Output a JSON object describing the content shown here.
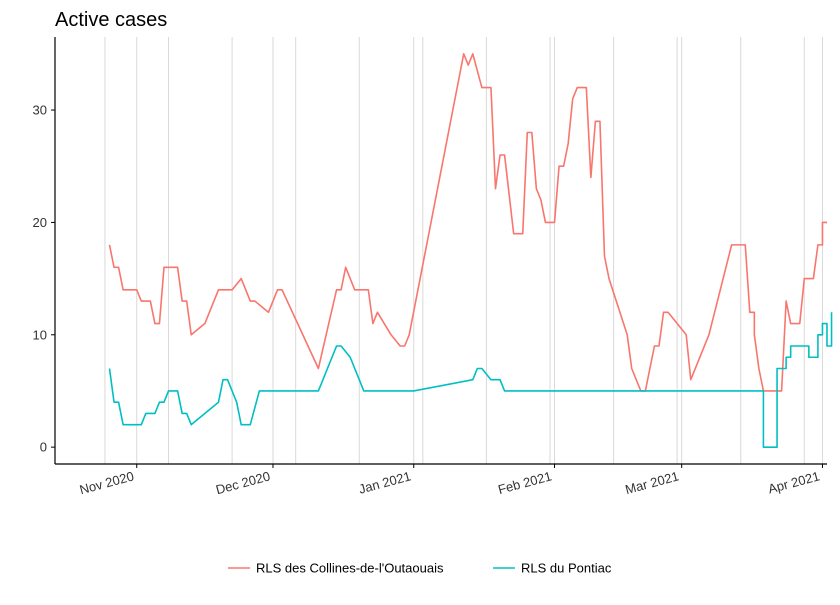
{
  "chart_data": {
    "type": "line",
    "title": "Active cases",
    "xlabel": "",
    "ylabel": "",
    "ylim": [
      -1.5,
      36.5
    ],
    "xlim": [
      "2020-10-14",
      "2021-04-02"
    ],
    "y_ticks": [
      0,
      10,
      20,
      30
    ],
    "x_ticks": [
      {
        "date": "2020-11-01",
        "label": "Nov 2020"
      },
      {
        "date": "2020-12-01",
        "label": "Dec 2020"
      },
      {
        "date": "2021-01-01",
        "label": "Jan 2021"
      },
      {
        "date": "2021-02-01",
        "label": "Feb 2021"
      },
      {
        "date": "2021-03-01",
        "label": "Mar 2021"
      },
      {
        "date": "2021-04-01",
        "label": "Apr 2021"
      }
    ],
    "minor_gridlines": [
      "2020-10-25",
      "2020-11-08",
      "2020-11-22",
      "2020-12-06",
      "2020-12-20",
      "2021-01-03",
      "2021-01-17",
      "2021-01-31",
      "2021-02-14",
      "2021-02-28",
      "2021-03-14",
      "2021-03-28"
    ],
    "grid": "vertical",
    "legend": "bottom",
    "series": [
      {
        "name": "RLS des Collines-de-l'Outaouais",
        "color": "#F8766D",
        "points": [
          [
            "2020-10-26",
            18
          ],
          [
            "2020-10-27",
            16
          ],
          [
            "2020-10-28",
            16
          ],
          [
            "2020-10-29",
            14
          ],
          [
            "2020-11-01",
            14
          ],
          [
            "2020-11-02",
            13
          ],
          [
            "2020-11-04",
            13
          ],
          [
            "2020-11-05",
            11
          ],
          [
            "2020-11-06",
            11
          ],
          [
            "2020-11-07",
            16
          ],
          [
            "2020-11-10",
            16
          ],
          [
            "2020-11-11",
            13
          ],
          [
            "2020-11-12",
            13
          ],
          [
            "2020-11-13",
            10
          ],
          [
            "2020-11-16",
            11
          ],
          [
            "2020-11-19",
            14
          ],
          [
            "2020-11-22",
            14
          ],
          [
            "2020-11-24",
            15
          ],
          [
            "2020-11-26",
            13
          ],
          [
            "2020-11-27",
            13
          ],
          [
            "2020-11-30",
            12
          ],
          [
            "2020-12-02",
            14
          ],
          [
            "2020-12-03",
            14
          ],
          [
            "2020-12-11",
            7
          ],
          [
            "2020-12-15",
            14
          ],
          [
            "2020-12-16",
            14
          ],
          [
            "2020-12-17",
            16
          ],
          [
            "2020-12-19",
            14
          ],
          [
            "2020-12-22",
            14
          ],
          [
            "2020-12-23",
            11
          ],
          [
            "2020-12-24",
            12
          ],
          [
            "2020-12-27",
            10
          ],
          [
            "2020-12-29",
            9
          ],
          [
            "2020-12-30",
            9
          ],
          [
            "2020-12-31",
            10
          ],
          [
            "2021-01-12",
            35
          ],
          [
            "2021-01-13",
            34
          ],
          [
            "2021-01-14",
            35
          ],
          [
            "2021-01-16",
            32
          ],
          [
            "2021-01-18",
            32
          ],
          [
            "2021-01-19",
            23
          ],
          [
            "2021-01-20",
            26
          ],
          [
            "2021-01-21",
            26
          ],
          [
            "2021-01-23",
            19
          ],
          [
            "2021-01-25",
            19
          ],
          [
            "2021-01-26",
            28
          ],
          [
            "2021-01-27",
            28
          ],
          [
            "2021-01-28",
            23
          ],
          [
            "2021-01-29",
            22
          ],
          [
            "2021-01-30",
            20
          ],
          [
            "2021-02-01",
            20
          ],
          [
            "2021-02-02",
            25
          ],
          [
            "2021-02-03",
            25
          ],
          [
            "2021-02-04",
            27
          ],
          [
            "2021-02-05",
            31
          ],
          [
            "2021-02-06",
            32
          ],
          [
            "2021-02-08",
            32
          ],
          [
            "2021-02-09",
            24
          ],
          [
            "2021-02-10",
            29
          ],
          [
            "2021-02-11",
            29
          ],
          [
            "2021-02-12",
            17
          ],
          [
            "2021-02-13",
            15
          ],
          [
            "2021-02-17",
            10
          ],
          [
            "2021-02-18",
            7
          ],
          [
            "2021-02-20",
            5
          ],
          [
            "2021-02-21",
            5
          ],
          [
            "2021-02-23",
            9
          ],
          [
            "2021-02-24",
            9
          ],
          [
            "2021-02-25",
            12
          ],
          [
            "2021-02-26",
            12
          ],
          [
            "2021-03-02",
            10
          ],
          [
            "2021-03-03",
            6
          ],
          [
            "2021-03-07",
            10
          ],
          [
            "2021-03-12",
            18
          ],
          [
            "2021-03-15",
            18
          ],
          [
            "2021-03-16",
            12
          ],
          [
            "2021-03-17",
            12
          ],
          [
            "2021-03-17",
            10
          ],
          [
            "2021-03-18",
            7
          ],
          [
            "2021-03-19",
            5
          ],
          [
            "2021-03-22",
            5
          ],
          [
            "2021-03-23",
            5
          ],
          [
            "2021-03-24",
            13
          ],
          [
            "2021-03-25",
            11
          ],
          [
            "2021-03-27",
            11
          ],
          [
            "2021-03-28",
            15
          ],
          [
            "2021-03-30",
            15
          ],
          [
            "2021-03-31",
            18
          ],
          [
            "2021-04-01",
            18
          ],
          [
            "2021-04-01",
            20
          ],
          [
            "2021-04-02",
            20
          ]
        ]
      },
      {
        "name": "RLS du Pontiac",
        "color": "#00BFC4",
        "points": [
          [
            "2020-10-26",
            7
          ],
          [
            "2020-10-27",
            4
          ],
          [
            "2020-10-28",
            4
          ],
          [
            "2020-10-29",
            2
          ],
          [
            "2020-11-02",
            2
          ],
          [
            "2020-11-03",
            3
          ],
          [
            "2020-11-05",
            3
          ],
          [
            "2020-11-06",
            4
          ],
          [
            "2020-11-07",
            4
          ],
          [
            "2020-11-08",
            5
          ],
          [
            "2020-11-10",
            5
          ],
          [
            "2020-11-11",
            3
          ],
          [
            "2020-11-12",
            3
          ],
          [
            "2020-11-13",
            2
          ],
          [
            "2020-11-19",
            4
          ],
          [
            "2020-11-20",
            6
          ],
          [
            "2020-11-21",
            6
          ],
          [
            "2020-11-23",
            4
          ],
          [
            "2020-11-24",
            2
          ],
          [
            "2020-11-26",
            2
          ],
          [
            "2020-11-28",
            5
          ],
          [
            "2020-12-11",
            5
          ],
          [
            "2020-12-15",
            9
          ],
          [
            "2020-12-16",
            9
          ],
          [
            "2020-12-18",
            8
          ],
          [
            "2020-12-20",
            6
          ],
          [
            "2020-12-21",
            5
          ],
          [
            "2021-01-01",
            5
          ],
          [
            "2021-01-14",
            6
          ],
          [
            "2021-01-15",
            7
          ],
          [
            "2021-01-16",
            7
          ],
          [
            "2021-01-18",
            6
          ],
          [
            "2021-01-20",
            6
          ],
          [
            "2021-01-21",
            5
          ],
          [
            "2021-03-19",
            5
          ],
          [
            "2021-03-19",
            0
          ],
          [
            "2021-03-22",
            0
          ],
          [
            "2021-03-22",
            7
          ],
          [
            "2021-03-24",
            7
          ],
          [
            "2021-03-24",
            8
          ],
          [
            "2021-03-25",
            8
          ],
          [
            "2021-03-25",
            9
          ],
          [
            "2021-03-29",
            9
          ],
          [
            "2021-03-29",
            8
          ],
          [
            "2021-03-31",
            8
          ],
          [
            "2021-03-31",
            10
          ],
          [
            "2021-04-01",
            10
          ],
          [
            "2021-04-01",
            11
          ],
          [
            "2021-04-02",
            11
          ],
          [
            "2021-04-02",
            9
          ],
          [
            "2021-04-03",
            9
          ],
          [
            "2021-04-03",
            12
          ]
        ]
      }
    ]
  }
}
